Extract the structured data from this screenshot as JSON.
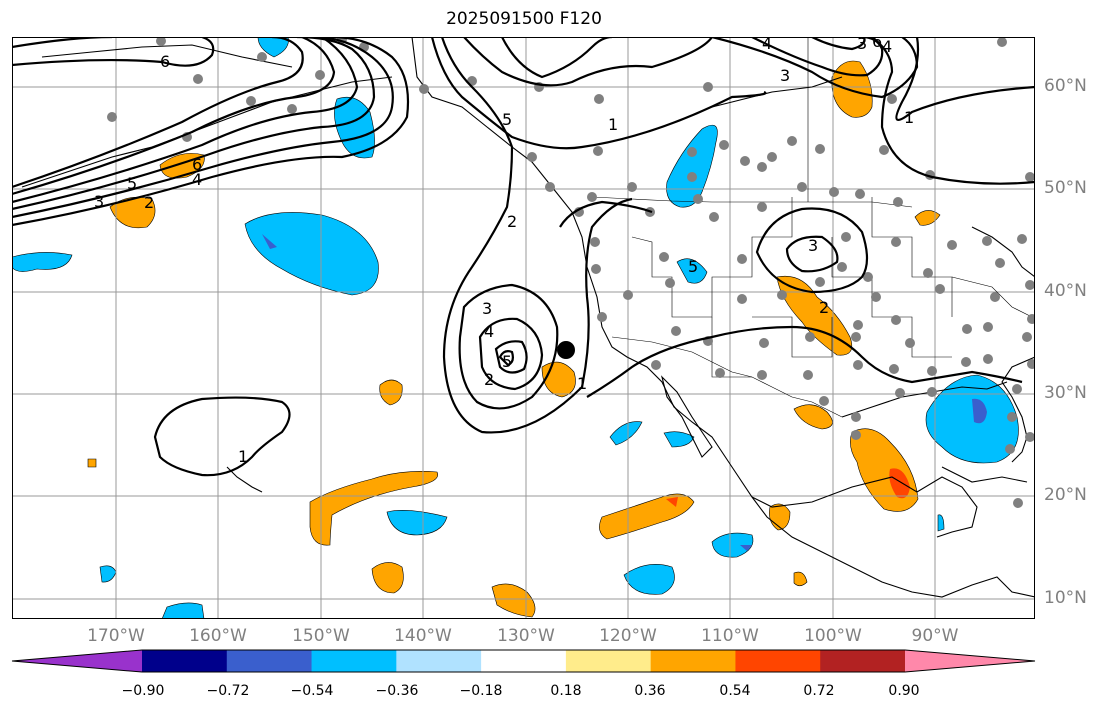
{
  "title": "2025091500 F120",
  "axes": {
    "lon_labels": [
      "170°W",
      "160°W",
      "150°W",
      "140°W",
      "130°W",
      "120°W",
      "110°W",
      "100°W",
      "90°W"
    ],
    "lat_labels": [
      "60°N",
      "50°N",
      "40°N",
      "30°N",
      "20°N",
      "10°N"
    ]
  },
  "colorbar": {
    "colors": [
      "#9932CC",
      "#00008B",
      "#3A5FCD",
      "#00BFFF",
      "#B0E2FF",
      "#FFFFFF",
      "#FFEC8B",
      "#FFA500",
      "#FF4500",
      "#B22222",
      "#FF88AA"
    ],
    "tick_labels": [
      "−0.90",
      "−0.72",
      "−0.54",
      "−0.36",
      "−0.18",
      "0.18",
      "0.36",
      "0.54",
      "0.72",
      "0.90"
    ]
  },
  "contour_labels": [
    "6",
    "5",
    "4",
    "3",
    "2",
    "6",
    "5",
    "4",
    "3",
    "2",
    "1",
    "5",
    "4",
    "3",
    "2",
    "1",
    "1",
    "3",
    "2",
    "4",
    "3",
    "6",
    "5",
    "1"
  ],
  "marker": "storm-center-dot"
}
